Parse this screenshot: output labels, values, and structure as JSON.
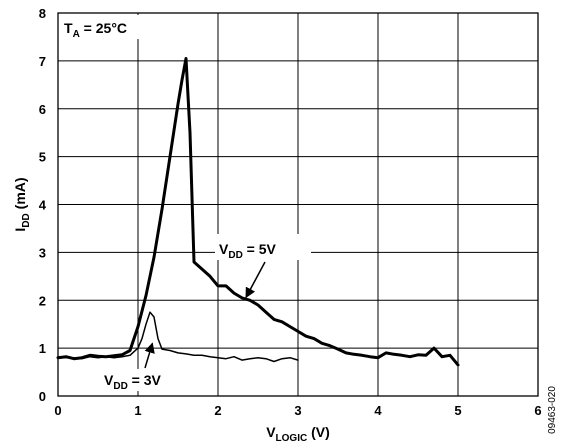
{
  "chart_data": {
    "type": "line",
    "xlabel": "V",
    "xlabel_sub": "LOGIC",
    "xlabel_unit": " (V)",
    "ylabel": "I",
    "ylabel_sub": "DD",
    "ylabel_unit": " (mA)",
    "xlim": [
      0,
      6
    ],
    "ylim": [
      0,
      8
    ],
    "x_ticks": [
      "0",
      "1",
      "2",
      "3",
      "4",
      "5",
      "6"
    ],
    "y_ticks": [
      "0",
      "1",
      "2",
      "3",
      "4",
      "5",
      "6",
      "7",
      "8"
    ],
    "grid": true,
    "annotation_ta": {
      "main": "T",
      "sub": "A",
      "rest": " = 25°C"
    },
    "figure_id": "09463-020",
    "series": [
      {
        "label": {
          "main": "V",
          "sub": "DD",
          "rest": " = 5V"
        },
        "x": [
          0,
          0.1,
          0.2,
          0.3,
          0.4,
          0.5,
          0.6,
          0.7,
          0.8,
          0.9,
          1.0,
          1.1,
          1.2,
          1.3,
          1.4,
          1.5,
          1.55,
          1.6,
          1.65,
          1.7,
          1.8,
          1.9,
          2.0,
          2.1,
          2.2,
          2.3,
          2.4,
          2.5,
          2.6,
          2.7,
          2.8,
          2.9,
          3.0,
          3.1,
          3.2,
          3.3,
          3.4,
          3.5,
          3.6,
          3.7,
          3.8,
          3.9,
          4.0,
          4.1,
          4.2,
          4.3,
          4.4,
          4.5,
          4.6,
          4.7,
          4.8,
          4.9,
          5.0
        ],
        "y": [
          0.8,
          0.82,
          0.78,
          0.8,
          0.85,
          0.83,
          0.82,
          0.84,
          0.86,
          0.95,
          1.45,
          2.1,
          2.9,
          3.9,
          5.0,
          6.1,
          6.6,
          7.05,
          5.5,
          2.8,
          2.65,
          2.5,
          2.3,
          2.3,
          2.15,
          2.05,
          2.0,
          1.9,
          1.75,
          1.6,
          1.55,
          1.45,
          1.35,
          1.25,
          1.2,
          1.1,
          1.05,
          0.98,
          0.9,
          0.87,
          0.85,
          0.82,
          0.8,
          0.9,
          0.87,
          0.85,
          0.82,
          0.86,
          0.85,
          1.0,
          0.82,
          0.85,
          0.65
        ]
      },
      {
        "label": {
          "main": "V",
          "sub": "DD",
          "rest": " = 3V"
        },
        "x": [
          0,
          0.1,
          0.2,
          0.3,
          0.4,
          0.5,
          0.6,
          0.7,
          0.8,
          0.9,
          1.0,
          1.05,
          1.1,
          1.15,
          1.2,
          1.25,
          1.3,
          1.4,
          1.5,
          1.6,
          1.7,
          1.8,
          1.9,
          2.0,
          2.1,
          2.2,
          2.3,
          2.4,
          2.5,
          2.6,
          2.7,
          2.8,
          2.9,
          3.0
        ],
        "y": [
          0.82,
          0.8,
          0.8,
          0.78,
          0.82,
          0.8,
          0.82,
          0.8,
          0.82,
          0.85,
          1.0,
          1.2,
          1.5,
          1.75,
          1.65,
          1.2,
          0.98,
          0.95,
          0.9,
          0.88,
          0.85,
          0.85,
          0.82,
          0.8,
          0.78,
          0.82,
          0.75,
          0.78,
          0.8,
          0.78,
          0.72,
          0.78,
          0.8,
          0.75
        ]
      }
    ]
  }
}
